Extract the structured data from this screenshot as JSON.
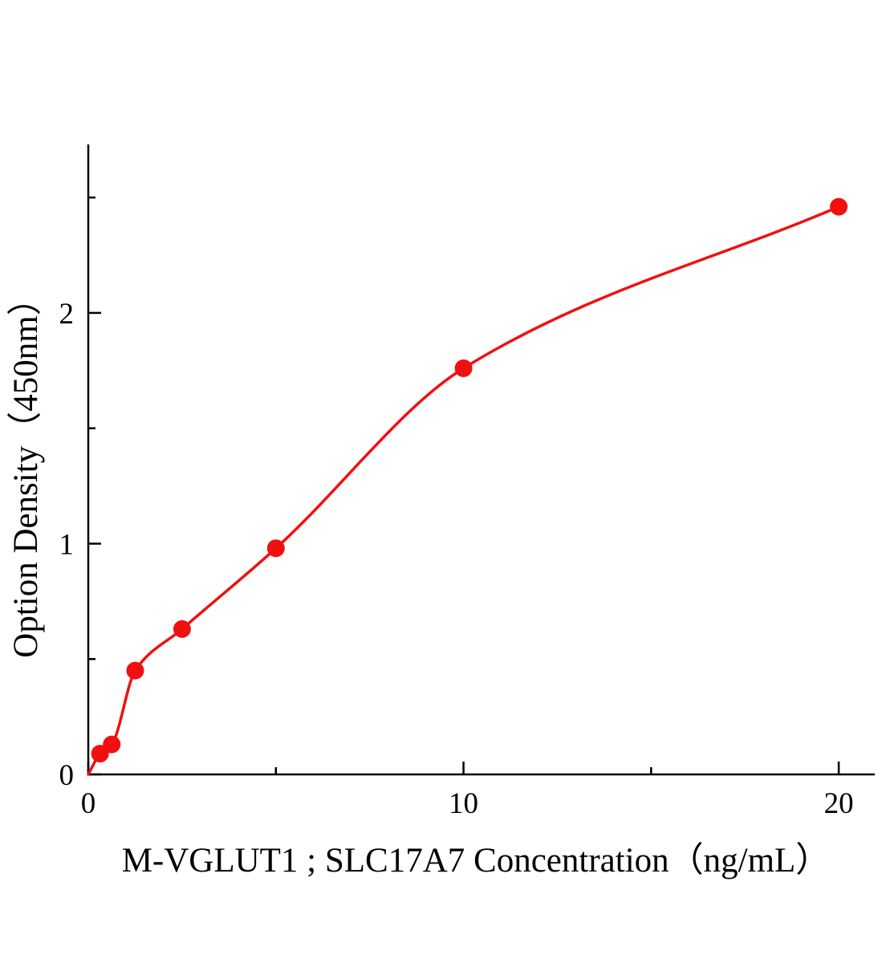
{
  "chart_data": {
    "type": "scatter",
    "title": "",
    "xlabel": "M-VGLUT1 ; SLC17A7 Concentration（ng/mL）",
    "ylabel": "Option Density（450nm）",
    "x": [
      0.313,
      0.625,
      1.25,
      2.5,
      5,
      10,
      20
    ],
    "y": [
      0.09,
      0.13,
      0.45,
      0.63,
      0.98,
      1.76,
      2.46
    ],
    "curve_start": [
      0,
      0
    ],
    "xlim": [
      0,
      20.96
    ],
    "ylim": [
      0,
      2.73
    ],
    "x_major_ticks": [
      0,
      10,
      20
    ],
    "x_major_tick_labels": [
      "0",
      "10",
      "20"
    ],
    "x_minor_ticks": [
      5,
      15
    ],
    "y_major_ticks": [
      0,
      1,
      2
    ],
    "y_major_tick_labels": [
      "0",
      "1",
      "2"
    ],
    "y_minor_ticks": [
      0.5,
      1.5,
      2.5
    ],
    "grid": false,
    "legend": null,
    "point_color": "#f01010",
    "line_color": "#f01010",
    "axis_color": "#000000"
  }
}
